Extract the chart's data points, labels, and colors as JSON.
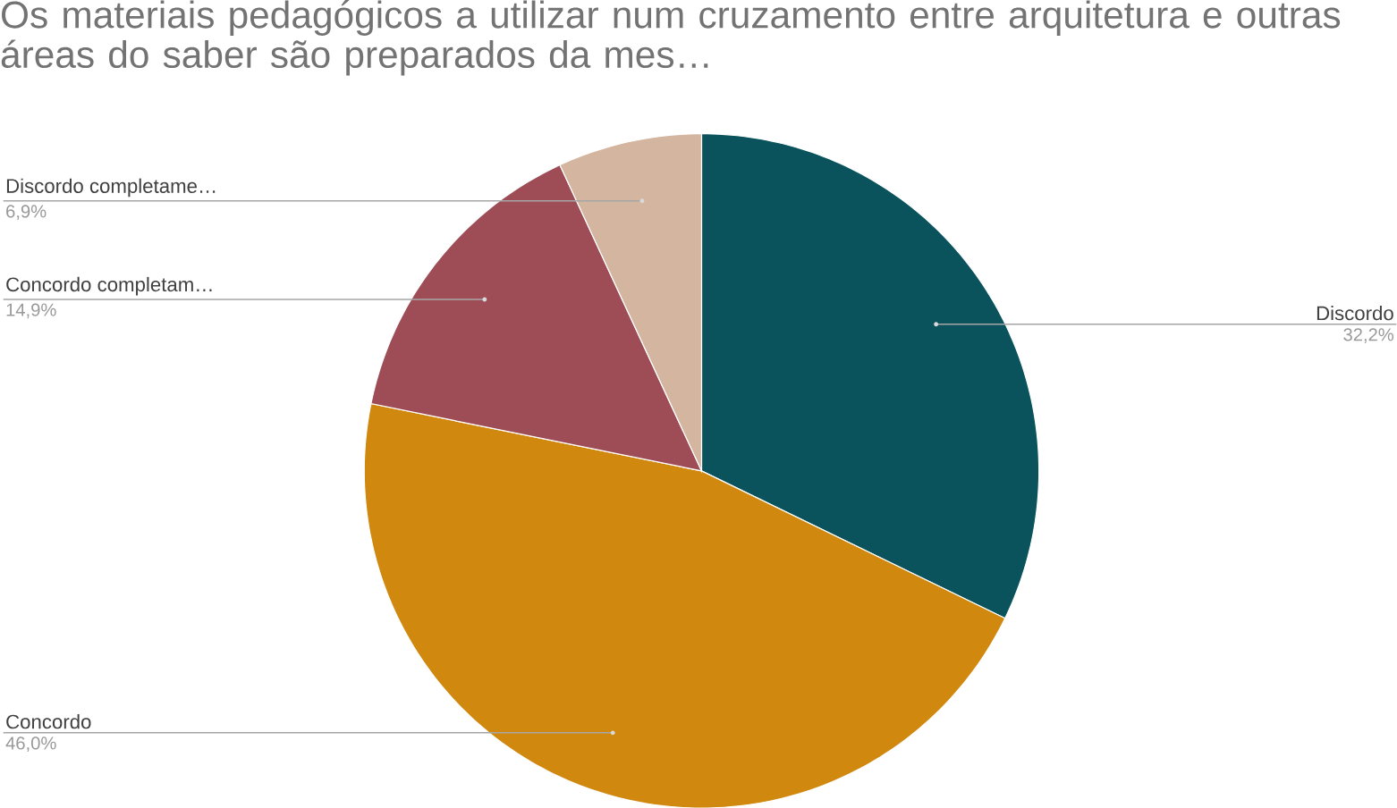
{
  "chart_data": {
    "type": "pie",
    "title": "Os materiais pedagógicos a utilizar num cruzamento entre arquitetura e outras áreas do saber são preparados da mes…",
    "categories": [
      "Discordo",
      "Concordo",
      "Concordo completam…",
      "Discordo completame…"
    ],
    "values": [
      32.2,
      46.0,
      14.9,
      6.9
    ],
    "colors": [
      "#0b535c",
      "#d0880f",
      "#9e4d57",
      "#d3b5a0"
    ],
    "value_labels": [
      "32,2%",
      "46,0%",
      "14,9%",
      "6,9%"
    ]
  }
}
